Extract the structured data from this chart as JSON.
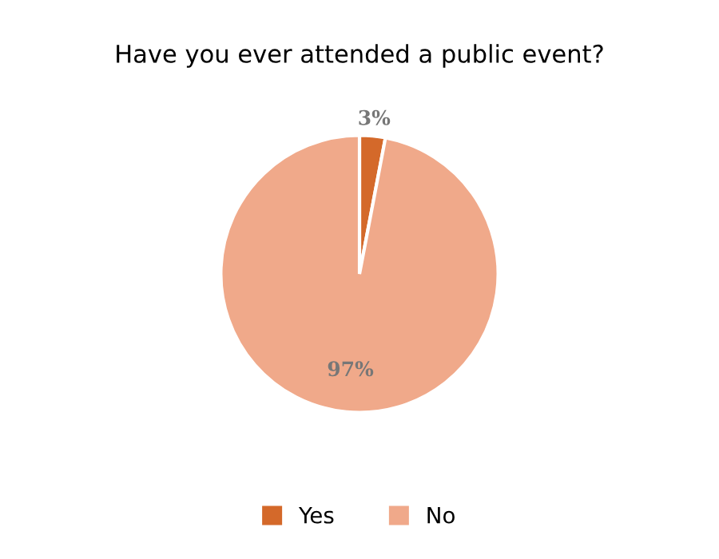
{
  "chart_data": {
    "type": "pie",
    "title": "Have you ever attended a public event?",
    "categories": [
      "Yes",
      "No"
    ],
    "values": [
      3,
      97
    ],
    "colors": [
      "#d4692a",
      "#f0a98a"
    ],
    "value_labels": [
      "3%",
      "97%"
    ],
    "legend": "bottom"
  }
}
